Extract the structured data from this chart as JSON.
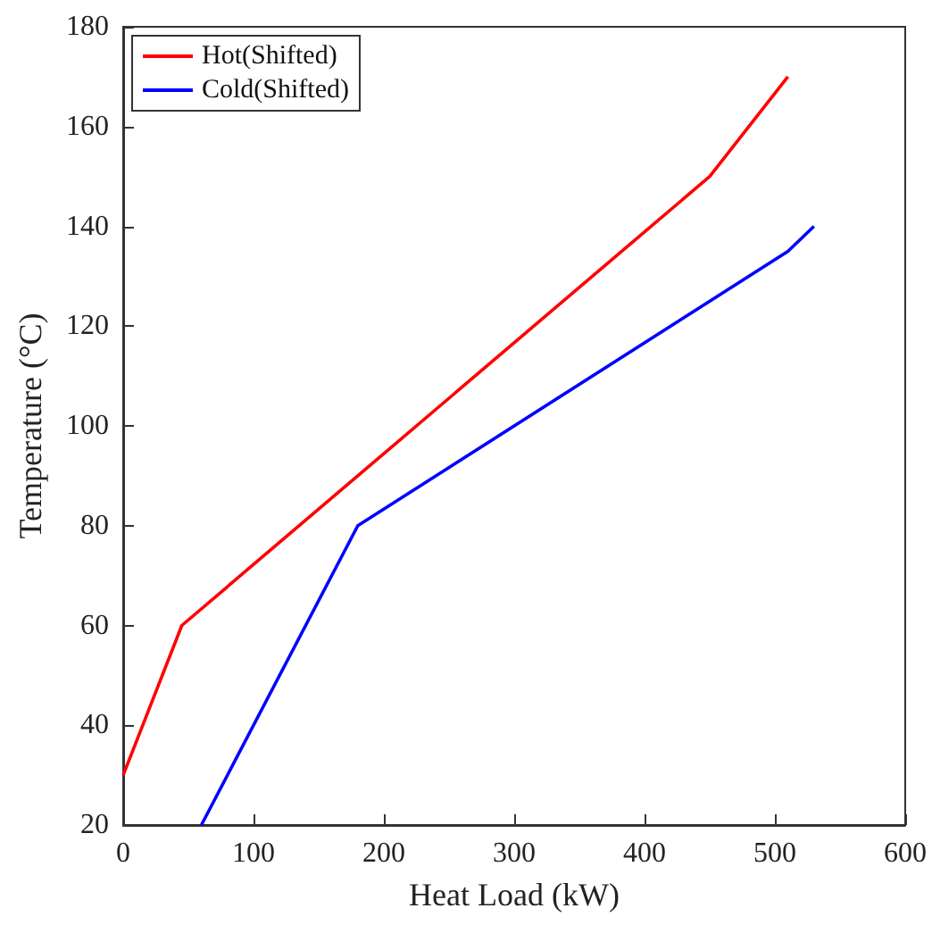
{
  "chart_data": {
    "type": "line",
    "xlabel": "Heat Load (kW)",
    "ylabel": "Temperature (°C)",
    "xlim": [
      0,
      600
    ],
    "xticks": [
      0,
      100,
      200,
      300,
      400,
      500,
      600
    ],
    "ylim": [
      20,
      180
    ],
    "yticks": [
      20,
      40,
      60,
      80,
      100,
      120,
      140,
      160,
      180
    ],
    "grid": false,
    "legend": "top left",
    "marker": "none",
    "line_style": "solid",
    "series": [
      {
        "name": "Hot(Shifted)",
        "color": "#ff0000",
        "x": [
          0,
          45,
          450,
          510
        ],
        "values": [
          30,
          60,
          150,
          170
        ]
      },
      {
        "name": "Cold(Shifted)",
        "color": "#0000ff",
        "x": [
          60,
          180,
          510,
          530
        ],
        "values": [
          20,
          80,
          135,
          140
        ]
      }
    ]
  }
}
